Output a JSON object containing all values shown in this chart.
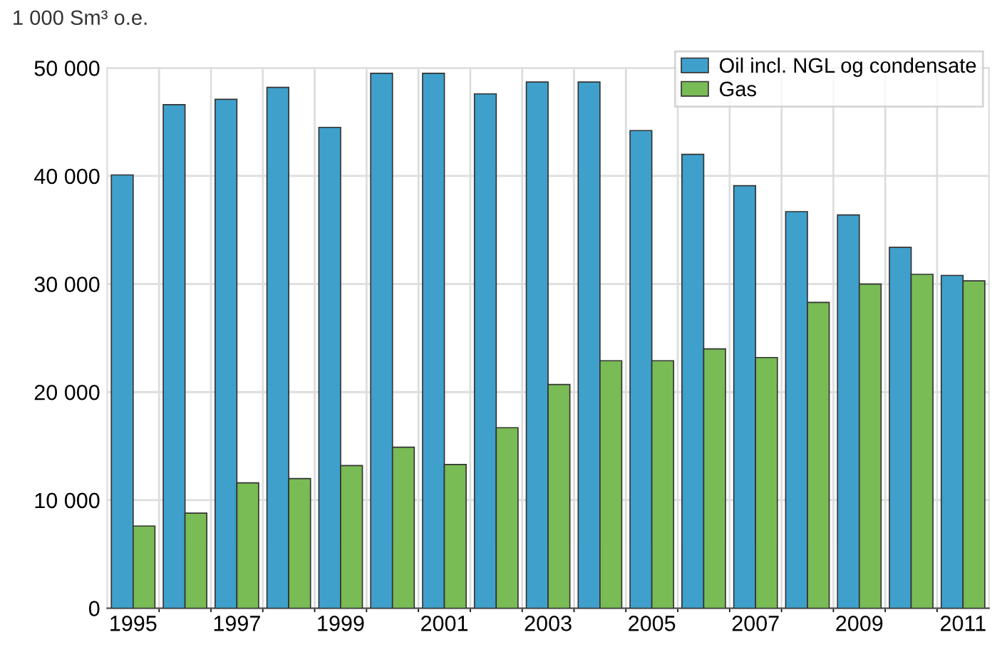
{
  "chart_data": {
    "type": "bar",
    "ylabel": "1 000 Sm³ o.e.",
    "categories": [
      "1995",
      null,
      "1997",
      null,
      "1999",
      null,
      "2001",
      null,
      "2003",
      null,
      "2005",
      null,
      "2007",
      null,
      "2009",
      null,
      "2011"
    ],
    "series": [
      {
        "name": "Oil incl. NGL og condensate",
        "color": "#3fa0cc",
        "values": [
          40100,
          46600,
          47100,
          48200,
          44500,
          49500,
          49500,
          47600,
          48700,
          48700,
          44200,
          42000,
          39100,
          36700,
          36400,
          33400,
          30800
        ]
      },
      {
        "name": "Gas",
        "color": "#79bb55",
        "values": [
          7600,
          8800,
          11600,
          12000,
          13200,
          14900,
          13300,
          16700,
          20700,
          22900,
          22900,
          24000,
          23200,
          28300,
          30000,
          30900,
          30300
        ]
      }
    ],
    "ylim": [
      0,
      50000
    ],
    "yticks": [
      0,
      {
        "value": 10000,
        "label": "10 000"
      },
      {
        "value": 20000,
        "label": "20 000"
      },
      {
        "value": 30000,
        "label": "30 000"
      },
      {
        "value": 40000,
        "label": "40 000"
      },
      {
        "value": 50000,
        "label": "50 000"
      }
    ],
    "grid": true,
    "legend": "top right"
  }
}
